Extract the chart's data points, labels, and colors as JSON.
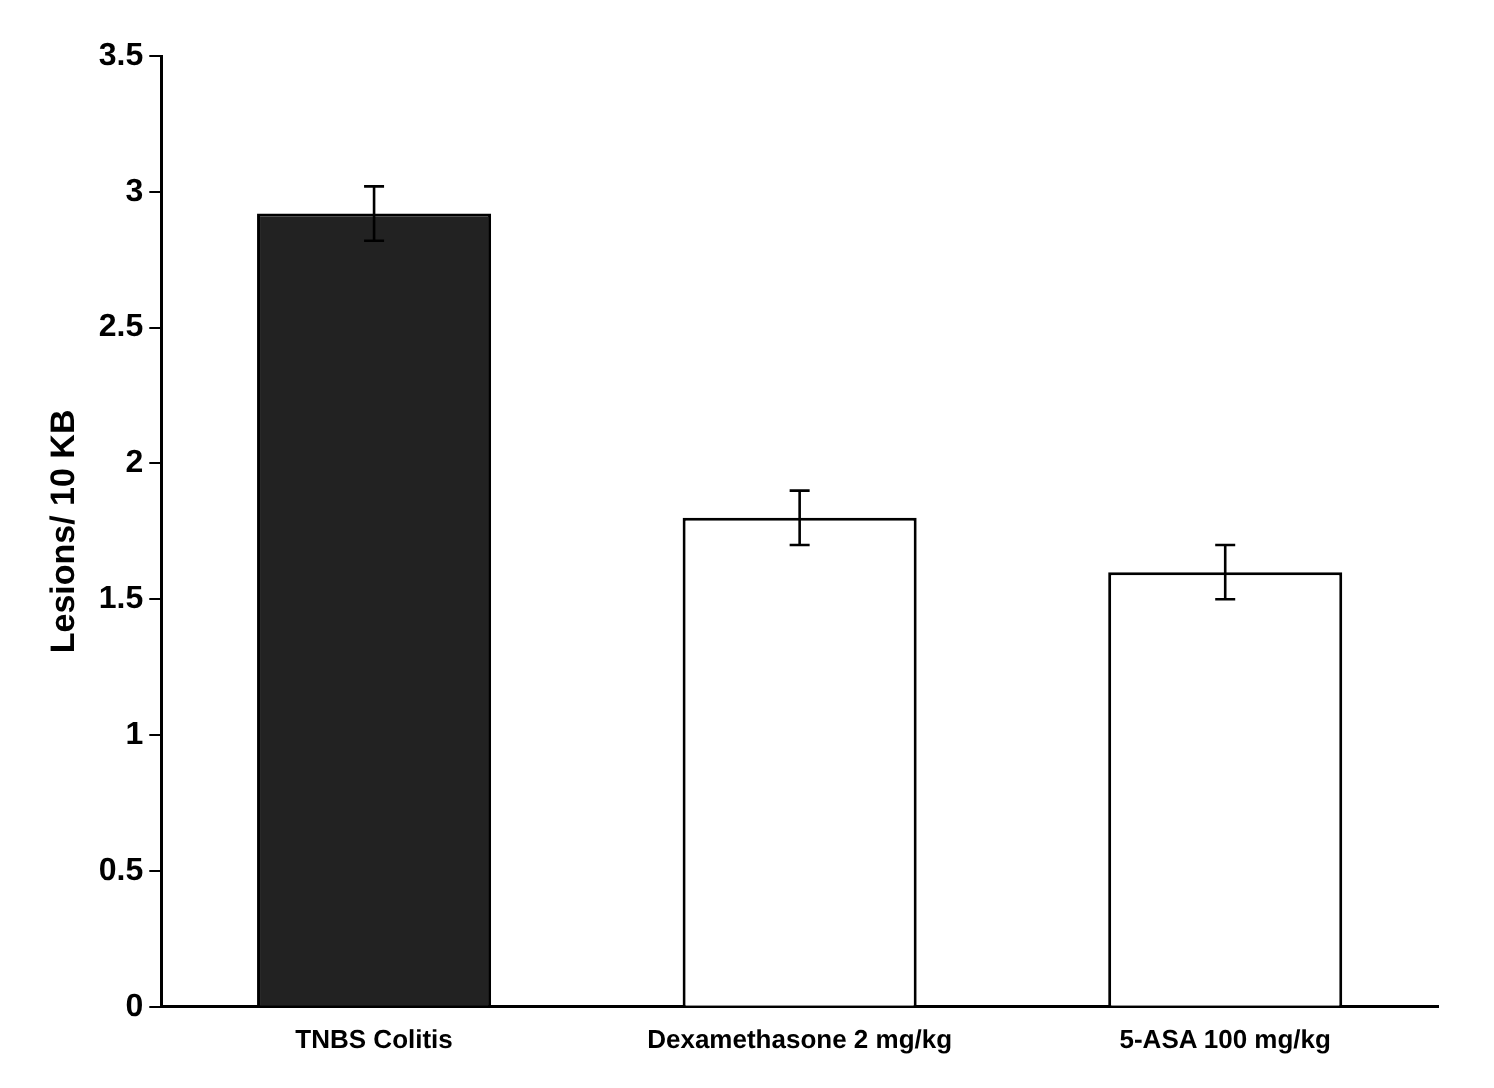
{
  "chart_data": {
    "type": "bar",
    "ylabel": "Lesions/ 10 KB",
    "categories": [
      "TNBS Colitis",
      "Dexamethasone 2 mg/kg",
      "5-ASA 100 mg/kg"
    ],
    "values": [
      2.92,
      1.8,
      1.6
    ],
    "errors": [
      0.1,
      0.1,
      0.1
    ],
    "colors": [
      "#222222",
      "#ffffff",
      "#ffffff"
    ],
    "ylim": [
      0,
      3.5
    ],
    "yticks": [
      0,
      0.5,
      1,
      1.5,
      2,
      2.5,
      3,
      3.5
    ],
    "grid": false,
    "legend": false
  }
}
